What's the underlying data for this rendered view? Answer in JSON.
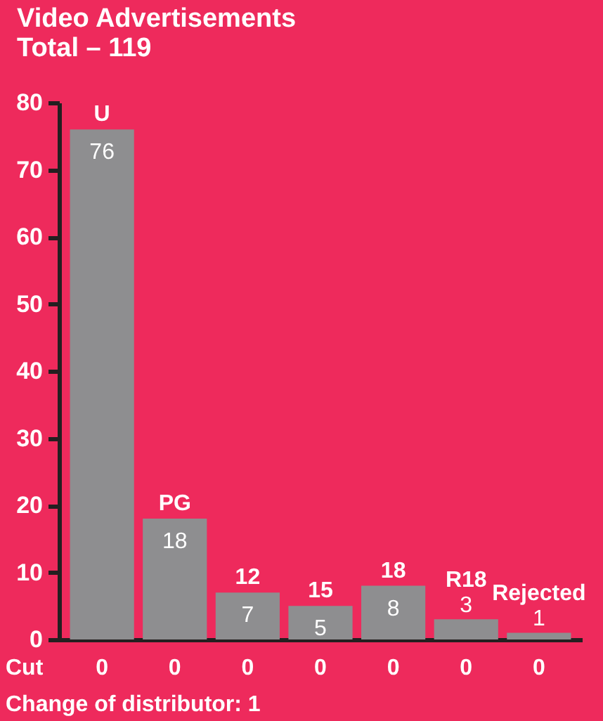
{
  "chart_data": {
    "type": "bar",
    "title": "Video Advertisements",
    "subtitle": "Total – 119",
    "categories": [
      "U",
      "PG",
      "12",
      "15",
      "18",
      "R18",
      "Rejected"
    ],
    "values": [
      76,
      18,
      7,
      5,
      8,
      3,
      1
    ],
    "color": "#8e8e90",
    "data_labels": true,
    "ylim": [
      0,
      80
    ],
    "yticks": [
      0,
      10,
      20,
      30,
      40,
      50,
      60,
      70,
      80
    ],
    "grid": false,
    "annotations": [
      "Cut",
      "0",
      "0",
      "0",
      "0",
      "0",
      "0",
      "0",
      "Change of distributor: 1"
    ]
  }
}
